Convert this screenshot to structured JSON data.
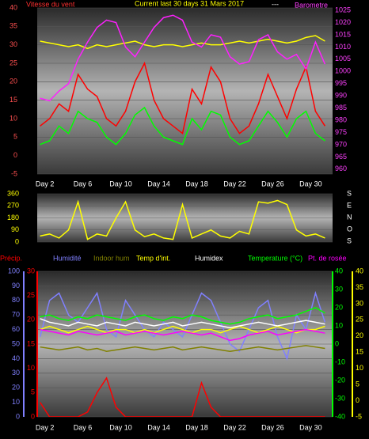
{
  "chart_data": [
    {
      "type": "line",
      "title": "Current last 30 days 31 Mars 2017",
      "subtitle": "---",
      "ylabel": "Vitesse du vent",
      "y2label": "Barometre",
      "ycolor": "#ff5050",
      "y2color": "#ff40ff",
      "grid": true,
      "x": [
        1.5,
        2.5,
        3.5,
        4.5,
        5.5,
        6.5,
        7.5,
        8.5,
        9.5,
        10.5,
        11.5,
        12.5,
        13.5,
        14.5,
        15.5,
        16.5,
        17.5,
        18.5,
        19.5,
        20.5,
        21.5,
        22.5,
        23.5,
        24.5,
        25.5,
        26.5,
        27.5,
        28.5,
        29.5,
        30.5,
        31.5
      ],
      "xlim": [
        1.2,
        32.3
      ],
      "xticks": [
        {
          "value": 2,
          "label": "Day 2"
        },
        {
          "value": 6,
          "label": "Day 6"
        },
        {
          "value": 10,
          "label": "Day 10"
        },
        {
          "value": 14,
          "label": "Day 14"
        },
        {
          "value": 18,
          "label": "Day 18"
        },
        {
          "value": 22,
          "label": "Day 22"
        },
        {
          "value": 26,
          "label": "Day 26"
        },
        {
          "value": 30,
          "label": "Day 30"
        }
      ],
      "ylim": [
        -5,
        40
      ],
      "yticks": [
        -5,
        0,
        5,
        10,
        15,
        20,
        25,
        30,
        35,
        40
      ],
      "y2lim": [
        958,
        1026
      ],
      "y2ticks": [
        960,
        965,
        970,
        975,
        980,
        985,
        990,
        995,
        1000,
        1005,
        1010,
        1015,
        1020,
        1025
      ],
      "series": [
        {
          "color": "#ff0000",
          "values": [
            8,
            10,
            14,
            12,
            22,
            18,
            16,
            10,
            8,
            12,
            20,
            25,
            15,
            10,
            8,
            6,
            18,
            14,
            24,
            20,
            10,
            6,
            8,
            14,
            22,
            16,
            10,
            18,
            24,
            12,
            8
          ]
        },
        {
          "color": "#00ff00",
          "values": [
            3,
            4,
            8,
            6,
            12,
            10,
            9,
            5,
            3,
            6,
            11,
            13,
            8,
            5,
            4,
            3,
            10,
            7,
            12,
            11,
            5,
            3,
            4,
            8,
            12,
            9,
            5,
            10,
            12,
            6,
            4
          ]
        },
        {
          "color": "#ffff00",
          "values": [
            31,
            30.5,
            30,
            29.5,
            30,
            29,
            30,
            29.5,
            30,
            30.5,
            31,
            30,
            29.5,
            30,
            30,
            29.5,
            30,
            30.5,
            30,
            30,
            30.5,
            31,
            30.5,
            31,
            31.5,
            31,
            30.5,
            31,
            32,
            32.5,
            31
          ]
        },
        {
          "color": "#ff20ff",
          "axis": "y2",
          "values": [
            989,
            988,
            992,
            995,
            1005,
            1012,
            1018,
            1021,
            1020,
            1010,
            1006,
            1012,
            1018,
            1022,
            1023,
            1021,
            1012,
            1010,
            1015,
            1014,
            1006,
            1003,
            1004,
            1013,
            1015,
            1008,
            1005,
            1007,
            1001,
            1012,
            1003
          ]
        }
      ]
    },
    {
      "type": "line",
      "ycolor": "#ffff00",
      "grid": true,
      "direction_labels": [
        "S",
        "E",
        "N",
        "O",
        "S"
      ],
      "x": [
        1.5,
        2.5,
        3.5,
        4.5,
        5.5,
        6.5,
        7.5,
        8.5,
        9.5,
        10.5,
        11.5,
        12.5,
        13.5,
        14.5,
        15.5,
        16.5,
        17.5,
        18.5,
        19.5,
        20.5,
        21.5,
        22.5,
        23.5,
        24.5,
        25.5,
        26.5,
        27.5,
        28.5,
        29.5,
        30.5,
        31.5
      ],
      "xlim": [
        1.2,
        32.3
      ],
      "ylim": [
        0,
        360
      ],
      "yticks": [
        0,
        90,
        180,
        270,
        360
      ],
      "series": [
        {
          "color": "#ffff00",
          "values": [
            45,
            60,
            30,
            90,
            300,
            20,
            60,
            45,
            180,
            300,
            90,
            40,
            60,
            30,
            20,
            280,
            30,
            60,
            90,
            45,
            30,
            80,
            60,
            300,
            290,
            310,
            280,
            90,
            45,
            60,
            30
          ]
        }
      ]
    },
    {
      "type": "line",
      "grid": true,
      "ycolor": "#8080ff",
      "y2color": "#00ff00",
      "y3color": "#ffff00",
      "y4color": "#ff0000",
      "x": [
        1.5,
        2.5,
        3.5,
        4.5,
        5.5,
        6.5,
        7.5,
        8.5,
        9.5,
        10.5,
        11.5,
        12.5,
        13.5,
        14.5,
        15.5,
        16.5,
        17.5,
        18.5,
        19.5,
        20.5,
        21.5,
        22.5,
        23.5,
        24.5,
        25.5,
        26.5,
        27.5,
        28.5,
        29.5,
        30.5,
        31.5
      ],
      "xlim": [
        1.2,
        32.3
      ],
      "xticks": [
        {
          "value": 2,
          "label": "Day 2"
        },
        {
          "value": 6,
          "label": "Day 6"
        },
        {
          "value": 10,
          "label": "Day 10"
        },
        {
          "value": 14,
          "label": "Day 14"
        },
        {
          "value": 18,
          "label": "Day 18"
        },
        {
          "value": 22,
          "label": "Day 22"
        },
        {
          "value": 26,
          "label": "Day 26"
        },
        {
          "value": 30,
          "label": "Day 30"
        }
      ],
      "ylim": [
        0,
        100
      ],
      "yticks": [
        0,
        10,
        20,
        30,
        40,
        50,
        60,
        70,
        80,
        90,
        100
      ],
      "y2lim": [
        -40,
        40
      ],
      "y2ticks": [
        -40,
        -30,
        -20,
        -10,
        0,
        10,
        20,
        30,
        40
      ],
      "y3lim": [
        -5,
        40
      ],
      "y3ticks": [
        -5,
        0,
        5,
        10,
        15,
        20,
        25,
        30,
        35,
        40
      ],
      "y4lim": [
        0,
        30
      ],
      "y4ticks": [
        0,
        5,
        10,
        15,
        20,
        25,
        30
      ],
      "series": [
        {
          "name": "Précip.",
          "color": "#ff0000",
          "axis": "y4",
          "values": [
            3,
            0,
            0,
            0,
            0,
            1,
            5,
            8,
            2,
            0,
            0,
            0,
            0,
            0,
            0,
            0,
            0,
            7,
            2,
            0,
            0,
            0,
            0,
            0,
            0,
            0,
            0,
            0,
            0,
            0,
            0
          ]
        },
        {
          "name": "Humidité",
          "color": "#8080ff",
          "values": [
            55,
            80,
            85,
            70,
            65,
            75,
            85,
            60,
            55,
            80,
            70,
            60,
            55,
            65,
            60,
            55,
            70,
            85,
            80,
            65,
            50,
            45,
            60,
            75,
            80,
            55,
            40,
            70,
            60,
            85,
            65
          ]
        },
        {
          "name": "Indoor hum",
          "color": "#808000",
          "values": [
            48,
            47,
            46,
            47,
            48,
            46,
            47,
            45,
            46,
            47,
            48,
            47,
            46,
            47,
            48,
            46,
            47,
            48,
            47,
            46,
            45,
            46,
            47,
            48,
            47,
            46,
            47,
            48,
            49,
            48,
            47
          ]
        },
        {
          "name": "Temp d'int.",
          "color": "#ffff00",
          "axis": "y3",
          "values": [
            22,
            23,
            22,
            21,
            22,
            23,
            22,
            21,
            22,
            22,
            21,
            22,
            21,
            22,
            23,
            22,
            21,
            22,
            22,
            21,
            22,
            23,
            22,
            21,
            22,
            23,
            22,
            21,
            22,
            22,
            23
          ]
        },
        {
          "name": "Humidex",
          "color": "#ffffff",
          "axis": "y2",
          "values": [
            14,
            12,
            11,
            10,
            12,
            11,
            10,
            12,
            11,
            10,
            12,
            11,
            10,
            11,
            12,
            10,
            11,
            12,
            11,
            10,
            9,
            10,
            11,
            12,
            11,
            10,
            11,
            12,
            13,
            12,
            11
          ]
        },
        {
          "name": "Temperature (°C)",
          "color": "#00ff00",
          "axis": "y2",
          "values": [
            15,
            16,
            14,
            13,
            15,
            14,
            16,
            15,
            14,
            13,
            15,
            16,
            14,
            13,
            15,
            14,
            16,
            15,
            13,
            12,
            11,
            12,
            14,
            15,
            16,
            14,
            15,
            16,
            18,
            20,
            17
          ]
        },
        {
          "name": "Pt. de rosée",
          "color": "#ff00ff",
          "axis": "y2",
          "values": [
            8,
            7,
            6,
            5,
            7,
            6,
            5,
            6,
            7,
            5,
            6,
            7,
            6,
            5,
            6,
            7,
            6,
            5,
            6,
            4,
            2,
            3,
            5,
            6,
            7,
            5,
            6,
            7,
            8,
            7,
            6
          ]
        }
      ]
    }
  ]
}
